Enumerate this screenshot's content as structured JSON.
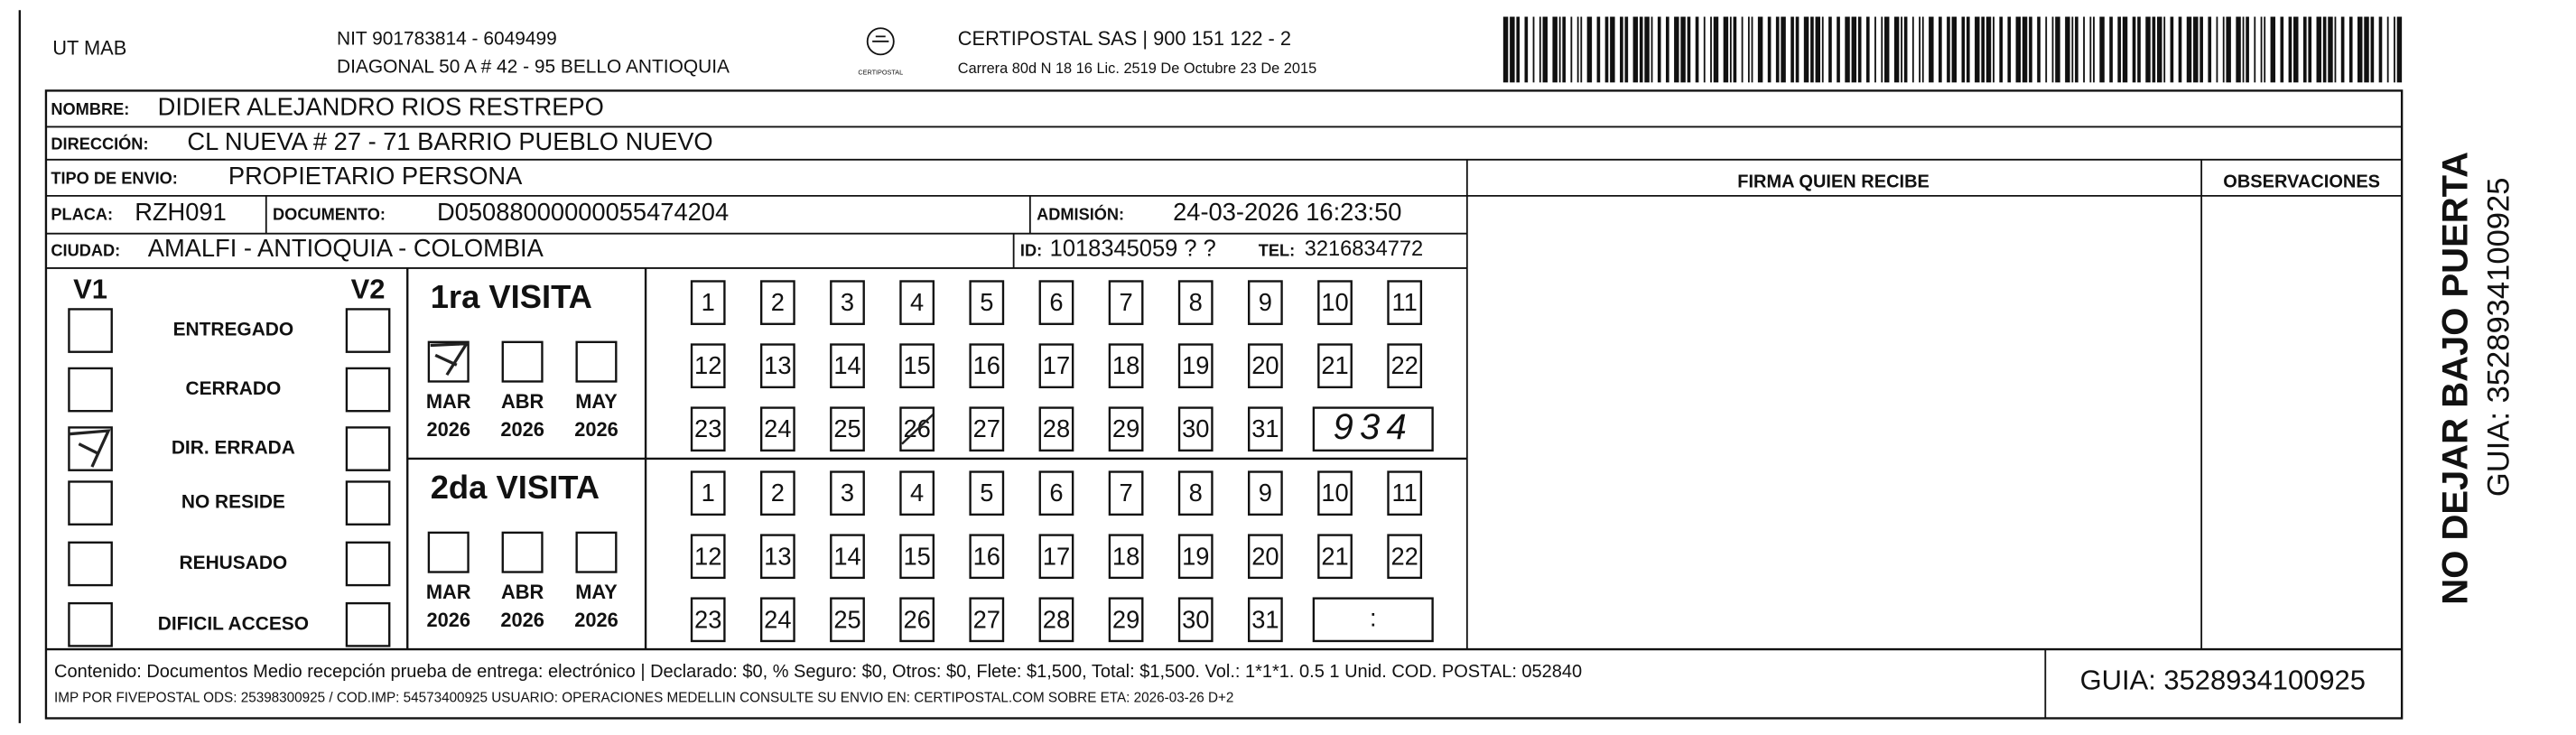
{
  "header": {
    "sender": "UT MAB",
    "nit": "NIT 901783814 - 6049499",
    "address": "DIAGONAL 50 A # 42 - 95  BELLO  ANTIOQUIA",
    "logo_text": "CERTIPOSTAL",
    "company": "CERTIPOSTAL SAS | 900 151 122 - 2",
    "license": "Carrera 80d N 18 16  Lic. 2519 De Octubre 23 De 2015"
  },
  "recipient": {
    "name_label": "NOMBRE:",
    "name": "DIDIER ALEJANDRO RIOS RESTREPO",
    "address_label": "DIRECCIÓN:",
    "address": "CL NUEVA # 27 - 71 BARRIO PUEBLO NUEVO",
    "type_label": "TIPO DE ENVIO:",
    "type": "PROPIETARIO PERSONA",
    "plate_label": "PLACA:",
    "plate": "RZH091",
    "document_label": "DOCUMENTO:",
    "document": "D05088000000055474204",
    "admission_label": "ADMISIÓN:",
    "admission": "24-03-2026 16:23:50",
    "city_label": "CIUDAD:",
    "city": "AMALFI - ANTIOQUIA - COLOMBIA",
    "id_label": "ID:",
    "id": "1018345059 ? ?",
    "tel_label": "TEL:",
    "tel": "3216834772"
  },
  "columns": {
    "signature": "FIRMA QUIEN RECIBE",
    "observations": "OBSERVACIONES"
  },
  "status": {
    "v1": "V1",
    "v2": "V2",
    "options": [
      "ENTREGADO",
      "CERRADO",
      "DIR. ERRADA",
      "NO RESIDE",
      "REHUSADO",
      "DIFICIL ACCESO"
    ]
  },
  "visits": [
    {
      "title": "1ra VISITA",
      "months": [
        {
          "month": "MAR",
          "year": "2026"
        },
        {
          "month": "ABR",
          "year": "2026"
        },
        {
          "month": "MAY",
          "year": "2026"
        }
      ],
      "days": [
        "1",
        "2",
        "3",
        "4",
        "5",
        "6",
        "7",
        "8",
        "9",
        "10",
        "11",
        "12",
        "13",
        "14",
        "15",
        "16",
        "17",
        "18",
        "19",
        "20",
        "21",
        "22",
        "23",
        "24",
        "25",
        "26",
        "27",
        "28",
        "29",
        "30",
        "31"
      ],
      "time": "934"
    },
    {
      "title": "2da VISITA",
      "months": [
        {
          "month": "MAR",
          "year": "2026"
        },
        {
          "month": "ABR",
          "year": "2026"
        },
        {
          "month": "MAY",
          "year": "2026"
        }
      ],
      "days": [
        "1",
        "2",
        "3",
        "4",
        "5",
        "6",
        "7",
        "8",
        "9",
        "10",
        "11",
        "12",
        "13",
        "14",
        "15",
        "16",
        "17",
        "18",
        "19",
        "20",
        "21",
        "22",
        "23",
        "24",
        "25",
        "26",
        "27",
        "28",
        "29",
        "30",
        "31"
      ],
      "time": ":"
    }
  ],
  "side": {
    "notice": "NO DEJAR BAJO PUERTA",
    "guide": "GUIA: 3528934100925"
  },
  "footer": {
    "content": "Contenido: Documentos Medio recepción prueba de entrega: electrónico | Declarado: $0, % Seguro: $0, Otros: $0, Flete: $1,500, Total: $1,500. Vol.: 1*1*1. 0.5  1 Unid. COD. POSTAL: 052840",
    "imp": "IMP POR FIVEPOSTAL ODS: 25398300925 / COD.IMP: 54573400925 USUARIO: OPERACIONES MEDELLIN CONSULTE SU ENVIO EN: CERTIPOSTAL.COM SOBRE ETA: 2026-03-26 D+2",
    "guide": "GUIA: 3528934100925"
  }
}
